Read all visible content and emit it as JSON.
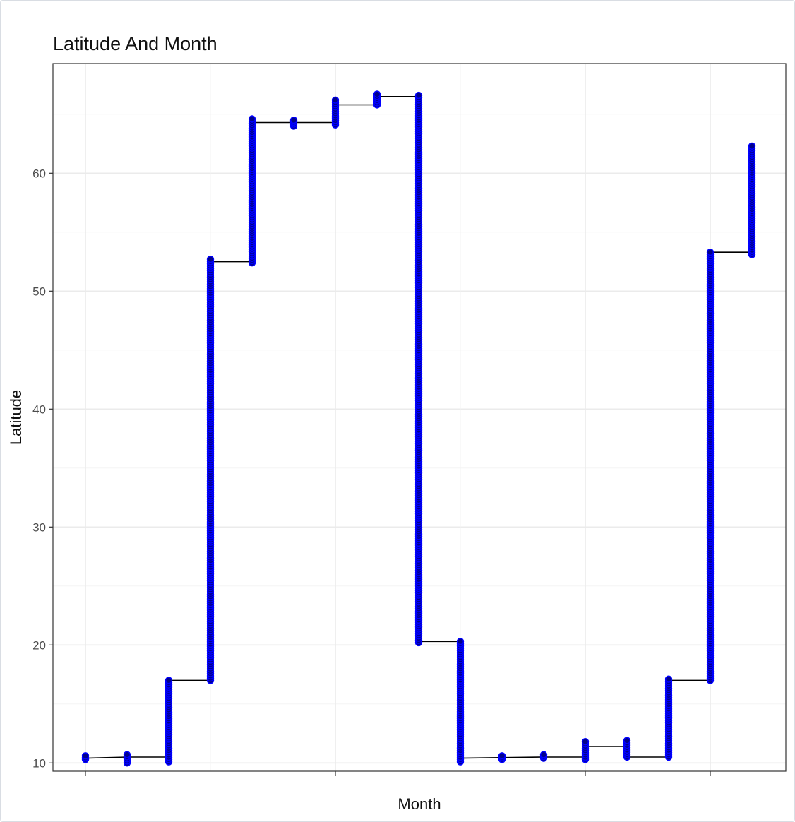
{
  "chart_data": {
    "type": "line",
    "title": "Latitude And Month",
    "xlabel": "Month",
    "ylabel": "Latitude",
    "ylim": [
      9.3,
      69.3
    ],
    "y_ticks": [
      10,
      20,
      30,
      40,
      50,
      60
    ],
    "x_ticks": [
      "",
      "",
      "",
      ""
    ],
    "grid": true,
    "point_color": "#0000ff",
    "point_fill": "#00008b",
    "line_color": "#000000",
    "step_line": [
      [
        0,
        10.4
      ],
      [
        1,
        10.5
      ],
      [
        2,
        10.5
      ],
      [
        2,
        17.0
      ],
      [
        3,
        17.0
      ],
      [
        3,
        52.5
      ],
      [
        4,
        52.5
      ],
      [
        4,
        64.3
      ],
      [
        6,
        64.3
      ],
      [
        6,
        65.8
      ],
      [
        7,
        65.8
      ],
      [
        7,
        66.5
      ],
      [
        8,
        66.5
      ],
      [
        8,
        20.3
      ],
      [
        9,
        20.3
      ],
      [
        9,
        10.4
      ],
      [
        11,
        10.5
      ],
      [
        12,
        10.5
      ],
      [
        12,
        11.4
      ],
      [
        13,
        11.4
      ],
      [
        13,
        10.5
      ],
      [
        14,
        10.5
      ],
      [
        14,
        17.0
      ],
      [
        15,
        17.0
      ],
      [
        15,
        53.3
      ],
      [
        16,
        53.3
      ],
      [
        16,
        62.3
      ]
    ],
    "point_clusters": [
      {
        "x": 0,
        "y_min": 10.3,
        "y_max": 10.6
      },
      {
        "x": 1,
        "y_min": 10.0,
        "y_max": 10.7
      },
      {
        "x": 2,
        "y_min": 10.1,
        "y_max": 17.0
      },
      {
        "x": 3,
        "y_min": 17.0,
        "y_max": 52.7
      },
      {
        "x": 4,
        "y_min": 52.4,
        "y_max": 64.6
      },
      {
        "x": 5,
        "y_min": 64.0,
        "y_max": 64.5
      },
      {
        "x": 6,
        "y_min": 64.1,
        "y_max": 66.2
      },
      {
        "x": 7,
        "y_min": 65.8,
        "y_max": 66.7
      },
      {
        "x": 8,
        "y_min": 20.2,
        "y_max": 66.6
      },
      {
        "x": 9,
        "y_min": 10.1,
        "y_max": 20.3
      },
      {
        "x": 10,
        "y_min": 10.3,
        "y_max": 10.6
      },
      {
        "x": 11,
        "y_min": 10.4,
        "y_max": 10.7
      },
      {
        "x": 12,
        "y_min": 10.3,
        "y_max": 11.8
      },
      {
        "x": 13,
        "y_min": 10.5,
        "y_max": 11.9
      },
      {
        "x": 14,
        "y_min": 10.5,
        "y_max": 17.1
      },
      {
        "x": 15,
        "y_min": 17.0,
        "y_max": 53.3
      },
      {
        "x": 16,
        "y_min": 53.1,
        "y_max": 62.3
      }
    ]
  }
}
